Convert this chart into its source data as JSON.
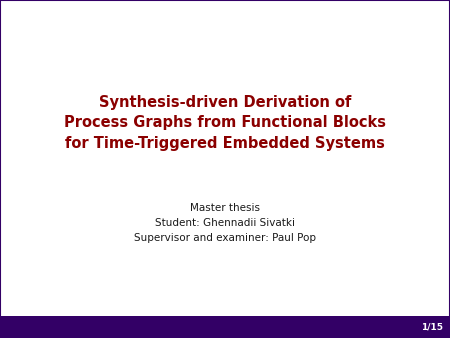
{
  "background_color": "#ffffff",
  "title_lines": [
    "Synthesis-driven Derivation of",
    "Process Graphs from Functional Blocks",
    "for Time-Triggered Embedded Systems"
  ],
  "title_color": "#8B0000",
  "title_fontsize": 10.5,
  "subtitle_lines": [
    "Master thesis",
    "Student: Ghennadii Sivatki",
    "Supervisor and examiner: Paul Pop"
  ],
  "subtitle_color": "#1a1a1a",
  "subtitle_fontsize": 7.5,
  "footer_bg_color": "#330066",
  "footer_text": "1/15",
  "footer_text_color": "#ffffff",
  "footer_fontsize": 6.5,
  "border_color": "#330066",
  "border_linewidth": 1.5
}
